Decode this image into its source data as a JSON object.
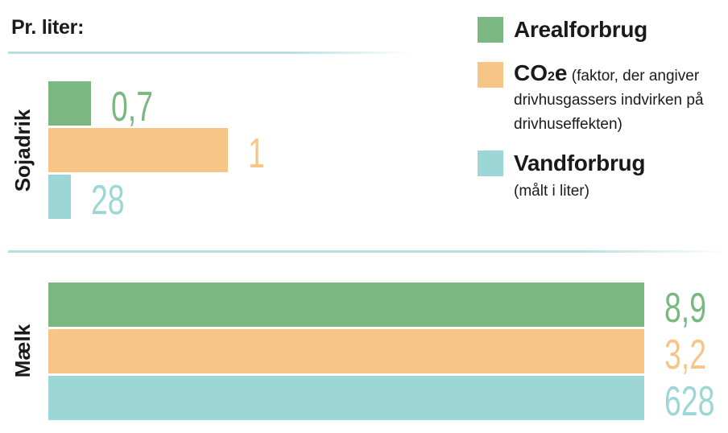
{
  "title": "Pr. liter:",
  "colors": {
    "arealforbrug": "#7ab781",
    "co2e": "#f7c687",
    "vandforbrug": "#9dd6d6",
    "rule": "#b9dfdf"
  },
  "legend": {
    "arealforbrug": {
      "name": "Arealforbrug"
    },
    "co2e": {
      "name_main": "CO",
      "name_sub": "2",
      "name_end": "e",
      "note_line1": "(faktor, der angiver",
      "note_line2": "drivhusgassers indvirken på",
      "note_line3": "drivhuseffekten)"
    },
    "vandforbrug": {
      "name": "Vandforbrug",
      "note": "(målt i liter)"
    }
  },
  "chart_data": {
    "type": "bar",
    "orientation": "horizontal",
    "title": "Pr. liter:",
    "groups": [
      {
        "name": "Sojadrik",
        "bars": [
          {
            "series": "Arealforbrug",
            "value": 0.7,
            "label": "0,7"
          },
          {
            "series": "CO2e",
            "value": 1,
            "label": "1"
          },
          {
            "series": "Vandforbrug",
            "value": 28,
            "label": "28"
          }
        ]
      },
      {
        "name": "Mælk",
        "bars": [
          {
            "series": "Arealforbrug",
            "value": 8.9,
            "label": "8,9"
          },
          {
            "series": "CO2e",
            "value": 3.2,
            "label": "3,2"
          },
          {
            "series": "Vandforbrug",
            "value": 628,
            "label": "628"
          }
        ]
      }
    ],
    "scale_note": "each series is scaled independently; milk bars share one length"
  }
}
